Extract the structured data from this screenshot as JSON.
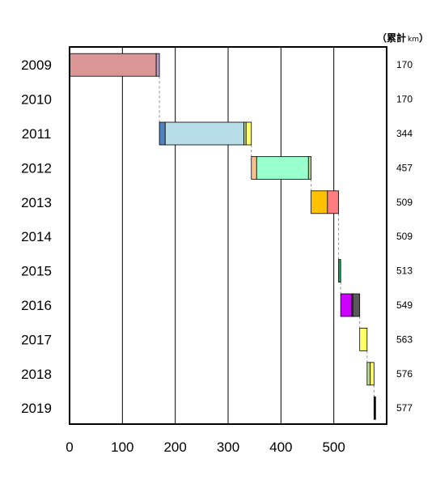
{
  "chart_data": {
    "type": "bar",
    "orientation": "horizontal",
    "stacked_waterfall": true,
    "xlim": [
      0,
      600
    ],
    "x_ticks": [
      "0",
      "100",
      "200",
      "300",
      "400",
      "500"
    ],
    "grid": "vertical",
    "unit_label": {
      "open": "（",
      "main": "累計",
      "small": "km",
      "close": "）"
    },
    "categories": [
      "2009",
      "2010",
      "2011",
      "2012",
      "2013",
      "2014",
      "2015",
      "2016",
      "2017",
      "2018",
      "2019"
    ],
    "cumulative_labels": [
      "170",
      "170",
      "344",
      "457",
      "509",
      "509",
      "513",
      "549",
      "563",
      "576",
      "577"
    ],
    "segments": [
      [
        {
          "start": 0,
          "end": 164,
          "color": "#DA9694"
        },
        {
          "start": 164,
          "end": 170,
          "color": "#B1A0C7"
        }
      ],
      [],
      [
        {
          "start": 170,
          "end": 181,
          "color": "#4F81BD"
        },
        {
          "start": 181,
          "end": 330,
          "color": "#B7DDE8"
        },
        {
          "start": 330,
          "end": 334,
          "color": "#C4D79B"
        },
        {
          "start": 334,
          "end": 344,
          "color": "#FFFF66"
        }
      ],
      [
        {
          "start": 344,
          "end": 354,
          "color": "#FABF8F"
        },
        {
          "start": 354,
          "end": 452,
          "color": "#99FFCC"
        },
        {
          "start": 452,
          "end": 457,
          "color": "#C4D79B"
        }
      ],
      [
        {
          "start": 457,
          "end": 488,
          "color": "#FFC000"
        },
        {
          "start": 488,
          "end": 509,
          "color": "#FF7C80"
        }
      ],
      [],
      [
        {
          "start": 509,
          "end": 513,
          "color": "#00B050"
        }
      ],
      [
        {
          "start": 513,
          "end": 534,
          "color": "#CC00FF"
        },
        {
          "start": 534,
          "end": 536,
          "color": "#7030A0"
        },
        {
          "start": 536,
          "end": 549,
          "color": "#595959"
        }
      ],
      [
        {
          "start": 549,
          "end": 563,
          "color": "#FFFF66"
        }
      ],
      [
        {
          "start": 563,
          "end": 569,
          "color": "#C4D79B"
        },
        {
          "start": 569,
          "end": 576,
          "color": "#FFFF66"
        }
      ],
      [
        {
          "start": 576,
          "end": 577,
          "color": "#000000"
        }
      ]
    ],
    "connector_lines": "dashed-gray"
  }
}
